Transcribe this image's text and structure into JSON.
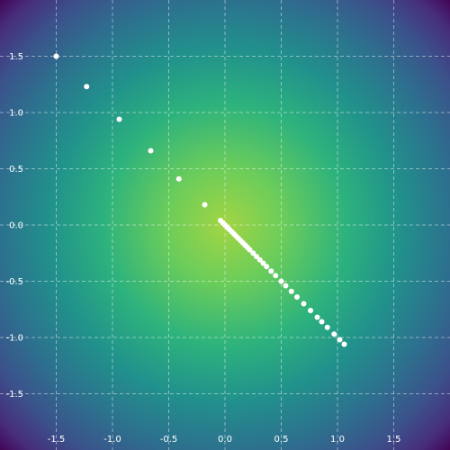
{
  "chart_data": {
    "type": "scatter",
    "title": "",
    "xlabel": "",
    "ylabel": "",
    "xlim": [
      -2.0,
      2.0
    ],
    "ylim": [
      -2.0,
      2.0
    ],
    "grid": true,
    "background": "radial gradient heatmap (viridis), brightest at origin",
    "x_ticks": [
      -1.5,
      -1.0,
      -0.5,
      0.0,
      0.5,
      1.0,
      1.5
    ],
    "x_tick_labels": [
      "-1.5",
      "-1.0",
      "-0.5",
      "0.0",
      "0.5",
      "1.0",
      "1.5"
    ],
    "y_ticks": [
      1.5,
      1.0,
      0.5,
      0.0,
      -0.5,
      -1.0,
      -1.5
    ],
    "y_tick_labels": [
      "1.5",
      "1.0",
      "0.5",
      "0.0",
      "-0.5",
      "-1.0",
      "-1.5"
    ],
    "colors": {
      "point": "#ffffff",
      "grid": "#ffffff",
      "center": "#a2d543",
      "edge": "#440154"
    },
    "series": [
      {
        "x": [
          -1.5,
          -1.23,
          -0.94,
          -0.66,
          -0.41,
          -0.18,
          -0.04,
          -0.02,
          0.0,
          0.02,
          0.04,
          0.06,
          0.08,
          0.1,
          0.12,
          0.14,
          0.16,
          0.18,
          0.2,
          0.22,
          0.25,
          0.28,
          0.31,
          0.34,
          0.37,
          0.41,
          0.45,
          0.5,
          0.54,
          0.59,
          0.64,
          0.7,
          0.76,
          0.82,
          0.86,
          0.91,
          0.97,
          1.02,
          1.06
        ],
        "y": [
          1.5,
          1.23,
          0.94,
          0.66,
          0.41,
          0.18,
          0.04,
          0.02,
          0.0,
          -0.02,
          -0.04,
          -0.06,
          -0.08,
          -0.1,
          -0.12,
          -0.14,
          -0.16,
          -0.18,
          -0.2,
          -0.22,
          -0.25,
          -0.28,
          -0.31,
          -0.34,
          -0.37,
          -0.41,
          -0.45,
          -0.5,
          -0.54,
          -0.59,
          -0.64,
          -0.7,
          -0.76,
          -0.82,
          -0.86,
          -0.91,
          -0.97,
          -1.02,
          -1.06
        ]
      }
    ]
  }
}
